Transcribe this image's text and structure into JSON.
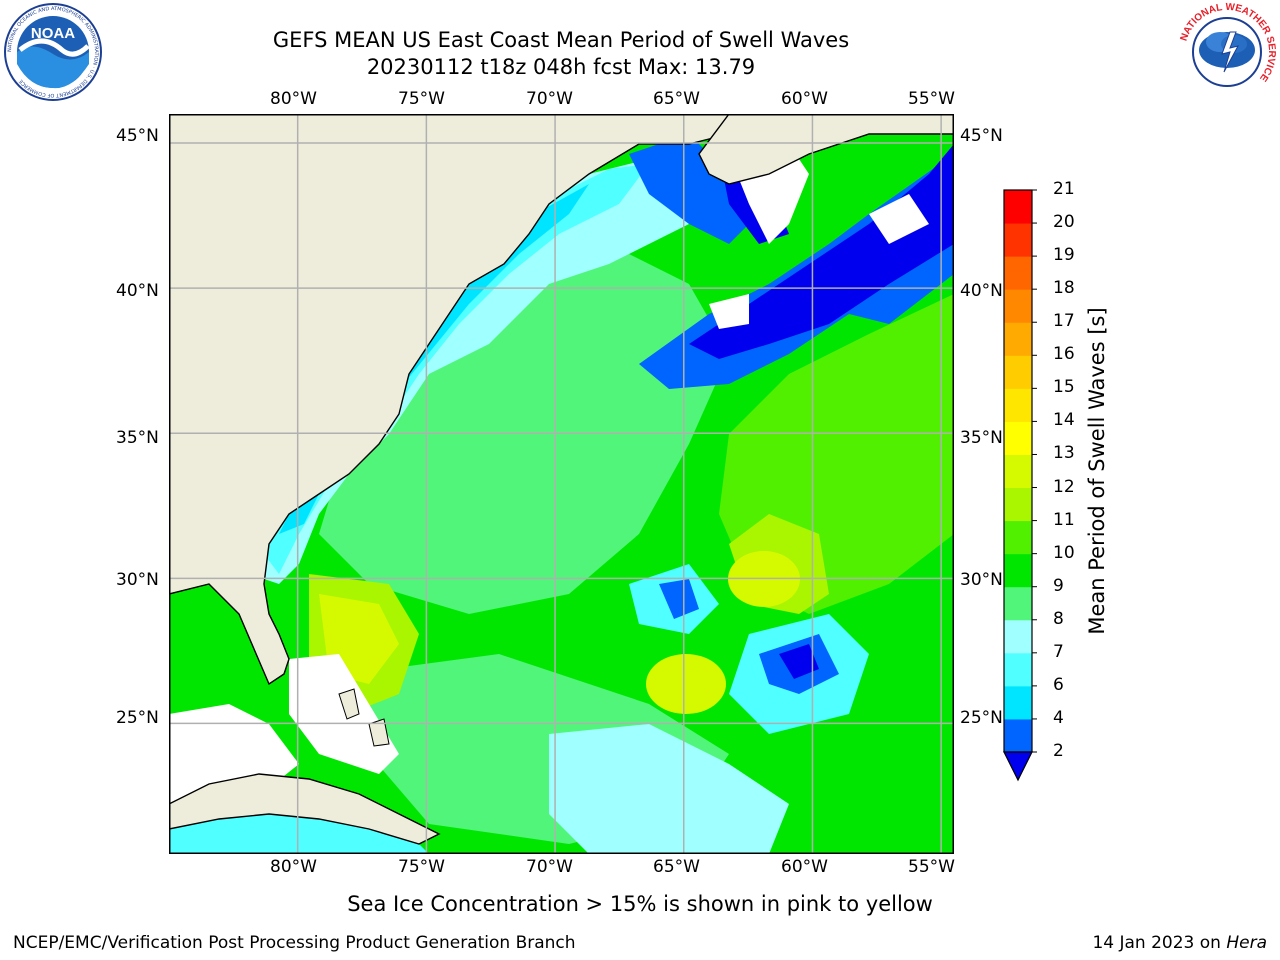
{
  "header": {
    "title_line1": "GEFS MEAN US East Coast Mean Period of Swell Waves",
    "title_line2": "20230112 t18z 048h fcst   Max: 13.79"
  },
  "logos": {
    "noaa_text": "NOAA",
    "noaa_ring_text": "NATIONAL OCEANIC AND ATMOSPHERIC ADMINISTRATION · U.S. DEPARTMENT OF COMMERCE",
    "nws_ring_text": "NATIONAL WEATHER SERVICE"
  },
  "map": {
    "lon_labels": [
      "80°W",
      "75°W",
      "70°W",
      "65°W",
      "60°W",
      "55°W"
    ],
    "lat_labels": [
      "45°N",
      "40°N",
      "35°N",
      "30°N",
      "25°N"
    ],
    "lon_range": [
      -85,
      -54.5
    ],
    "lat_range": [
      20.5,
      46
    ],
    "lon_ticks": [
      -80,
      -75,
      -70,
      -65,
      -60,
      -55
    ],
    "lat_ticks": [
      45,
      40,
      35,
      30,
      25
    ],
    "grid": true,
    "colors": {
      "land": "#eeeddc",
      "ocean_base": "#00e600",
      "missing": "#ffffff",
      "grid": "#b0b0b0"
    }
  },
  "colorbar": {
    "label": "Mean Period of Swell Waves [s]",
    "ticks": [
      "2",
      "4",
      "6",
      "7",
      "8",
      "9",
      "10",
      "11",
      "12",
      "13",
      "14",
      "15",
      "16",
      "17",
      "18",
      "19",
      "20",
      "21"
    ],
    "colors": [
      "#0065ff",
      "#00e5ff",
      "#50ffff",
      "#a0ffff",
      "#50f57a",
      "#00e600",
      "#50f000",
      "#aaf500",
      "#d5fa00",
      "#ffff00",
      "#ffe600",
      "#ffcc00",
      "#ffaa00",
      "#ff8800",
      "#ff6600",
      "#ff3300",
      "#ff0000"
    ],
    "extend_color": "#0000ee",
    "extend": "min"
  },
  "footer": {
    "ice_note": "Sea Ice Concentration > 15% is shown in pink to yellow",
    "branch": "NCEP/EMC/Verification Post Processing Product Generation Branch",
    "date": "14 Jan 2023 on ",
    "machine": "Hera"
  }
}
